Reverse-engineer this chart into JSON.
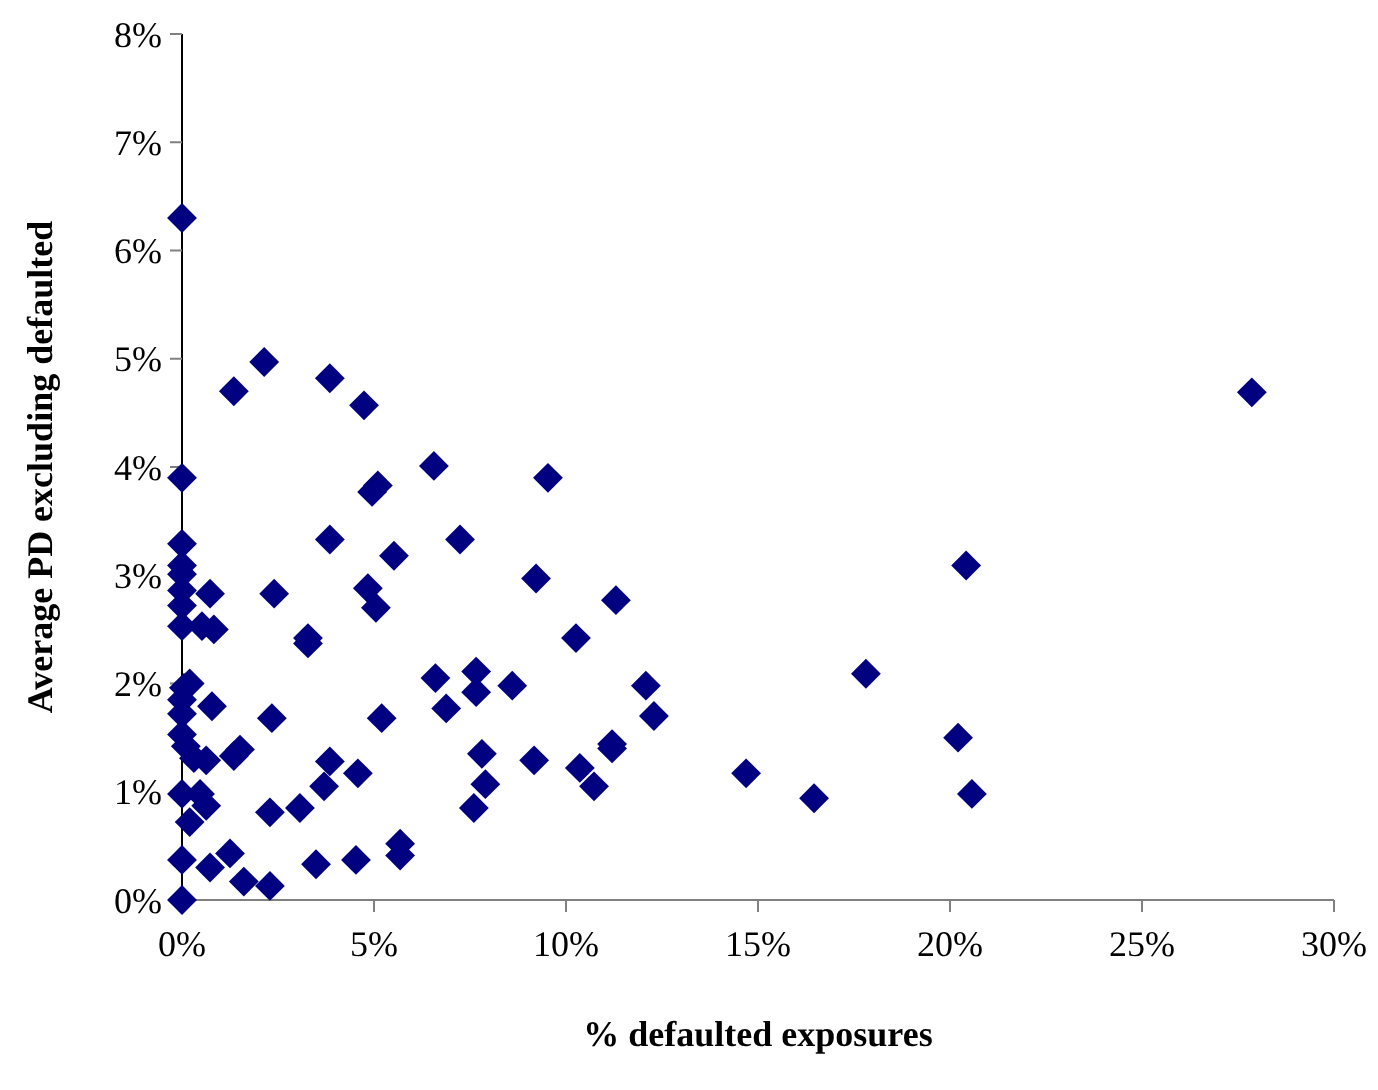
{
  "chart_data": {
    "type": "scatter",
    "xlabel": "% defaulted exposures",
    "ylabel": "Average PD excluding defaulted",
    "marker": "diamond",
    "grid": false,
    "xlim": [
      0,
      30
    ],
    "ylim": [
      0,
      8
    ],
    "xticks": [
      {
        "value": 0,
        "label": "0%"
      },
      {
        "value": 5,
        "label": "5%"
      },
      {
        "value": 10,
        "label": "10%"
      },
      {
        "value": 15,
        "label": "15%"
      },
      {
        "value": 20,
        "label": "20%"
      },
      {
        "value": 25,
        "label": "25%"
      },
      {
        "value": 30,
        "label": "30%"
      }
    ],
    "yticks": [
      {
        "value": 0,
        "label": "0%"
      },
      {
        "value": 1,
        "label": "1%"
      },
      {
        "value": 2,
        "label": "2%"
      },
      {
        "value": 3,
        "label": "3%"
      },
      {
        "value": 4,
        "label": "4%"
      },
      {
        "value": 5,
        "label": "5%"
      },
      {
        "value": 6,
        "label": "6%"
      },
      {
        "value": 7,
        "label": "7%"
      },
      {
        "value": 8,
        "label": "8%"
      }
    ],
    "series": [
      {
        "color": "#000080",
        "x": [
          0,
          1.35,
          2.14,
          3.85,
          4.74,
          0,
          6.56,
          4.95,
          5.1,
          9.53,
          0,
          3.85,
          5.52,
          7.24,
          9.22,
          0,
          0,
          0,
          0,
          0,
          0.73,
          2.4,
          4.84,
          5.05,
          0.52,
          0.83,
          3.28,
          3.28,
          0.05,
          0.2,
          6.6,
          7.66,
          7.66,
          8.6,
          0.78,
          0,
          0,
          0,
          2.34,
          5.2,
          6.88,
          0.1,
          0.31,
          0.63,
          1.51,
          1.35,
          3.85,
          3.7,
          4.58,
          7.81,
          9.17,
          7.9,
          7.6,
          0,
          0.47,
          0.63,
          0.2,
          2.29,
          3.07,
          0,
          0.73,
          1.25,
          1.61,
          2.29,
          3.49,
          4.53,
          5.68,
          5.68,
          0,
          11.3,
          10.26,
          12.08,
          12.29,
          11.2,
          11.2,
          10.36,
          10.73,
          14.69,
          16.46,
          17.81,
          27.86,
          20.42,
          20.21,
          20.57
        ],
        "values": [
          6.3,
          4.7,
          4.97,
          4.82,
          4.57,
          3.9,
          4.01,
          3.77,
          3.83,
          3.9,
          3.29,
          3.33,
          3.18,
          3.33,
          2.97,
          3.09,
          3.01,
          2.86,
          2.72,
          2.53,
          2.83,
          2.83,
          2.88,
          2.7,
          2.53,
          2.5,
          2.42,
          2.37,
          1.96,
          2.0,
          2.05,
          2.11,
          1.92,
          1.98,
          1.79,
          1.85,
          1.72,
          1.53,
          1.68,
          1.68,
          1.77,
          1.42,
          1.31,
          1.29,
          1.39,
          1.33,
          1.28,
          1.05,
          1.17,
          1.35,
          1.29,
          1.07,
          0.85,
          0.98,
          0.98,
          0.87,
          0.72,
          0.81,
          0.85,
          0.37,
          0.3,
          0.43,
          0.17,
          0.13,
          0.33,
          0.37,
          0.52,
          0.41,
          0,
          2.77,
          2.42,
          1.98,
          1.7,
          1.44,
          1.4,
          1.22,
          1.05,
          1.17,
          0.94,
          2.09,
          4.69,
          3.09,
          1.5,
          0.98
        ]
      }
    ]
  }
}
